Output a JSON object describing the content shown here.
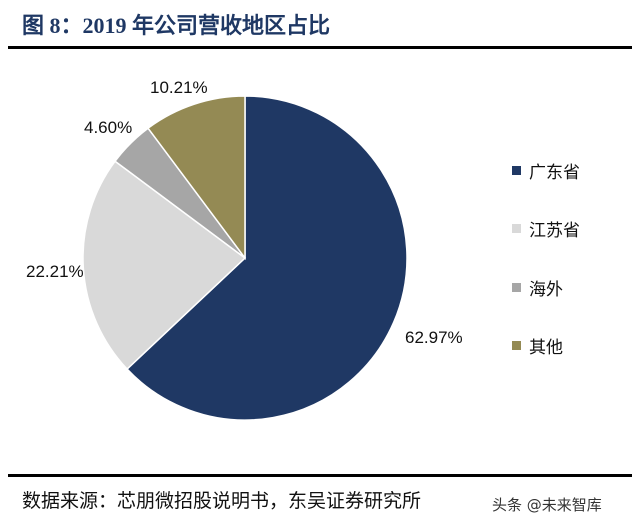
{
  "title": "图 8：2019 年公司营收地区占比",
  "source": "数据来源：芯朋微招股说明书，东吴证券研究所",
  "watermark": "头条 @未来智库",
  "chart_data": {
    "type": "pie",
    "title": "图 8：2019 年公司营收地区占比",
    "start_angle": "12 o'clock",
    "direction": "clockwise",
    "legend_placement": "right",
    "slices": [
      {
        "name": "广东省",
        "value": 62.97,
        "label": "62.97%",
        "color": "#1f3864"
      },
      {
        "name": "江苏省",
        "value": 22.21,
        "label": "22.21%",
        "color": "#d9d9d9"
      },
      {
        "name": "海外",
        "value": 4.6,
        "label": "4.60%",
        "color": "#a6a6a6"
      },
      {
        "name": "其他",
        "value": 10.21,
        "label": "10.21%",
        "color": "#948a54"
      }
    ]
  }
}
